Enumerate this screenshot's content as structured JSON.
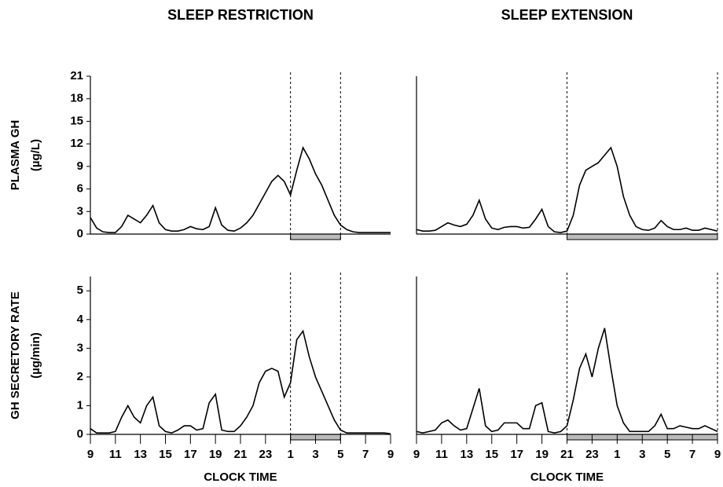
{
  "chart_data": [
    {
      "type": "line",
      "title": "SLEEP RESTRICTION",
      "ylabel": "PLASMA GH",
      "ylabel_unit": "(µg/L)",
      "color": "#000000",
      "sleep_period": [
        25,
        29
      ],
      "xlim": [
        9,
        33
      ],
      "ylim": [
        0,
        21
      ],
      "yticks": [
        0,
        3,
        6,
        9,
        12,
        15,
        18,
        21
      ],
      "x": [
        9,
        9.5,
        10,
        10.5,
        11,
        11.5,
        12,
        12.5,
        13,
        13.5,
        14,
        14.5,
        15,
        15.5,
        16,
        16.5,
        17,
        17.5,
        18,
        18.5,
        19,
        19.5,
        20,
        20.5,
        21,
        21.5,
        22,
        22.5,
        23,
        23.5,
        24,
        24.5,
        25,
        25.5,
        26,
        26.5,
        27,
        27.5,
        28,
        28.5,
        29,
        29.5,
        30,
        30.5,
        31,
        31.5,
        32,
        32.5,
        33
      ],
      "values": [
        2.2,
        0.8,
        0.3,
        0.2,
        0.2,
        1.0,
        2.5,
        2.0,
        1.5,
        2.5,
        3.8,
        1.5,
        0.6,
        0.4,
        0.4,
        0.6,
        1.0,
        0.7,
        0.6,
        1.0,
        3.5,
        1.2,
        0.5,
        0.4,
        0.8,
        1.5,
        2.5,
        4.0,
        5.5,
        7.0,
        7.8,
        7.0,
        5.2,
        8.5,
        11.5,
        10.0,
        8.0,
        6.5,
        4.5,
        2.5,
        1.2,
        0.6,
        0.3,
        0.2,
        0.2,
        0.2,
        0.2,
        0.2,
        0.2
      ]
    },
    {
      "type": "line",
      "title": "SLEEP EXTENSION",
      "color": "#000000",
      "sleep_period": [
        21,
        33
      ],
      "xlim": [
        9,
        33
      ],
      "ylim": [
        0,
        21
      ],
      "x": [
        9,
        9.5,
        10,
        10.5,
        11,
        11.5,
        12,
        12.5,
        13,
        13.5,
        14,
        14.5,
        15,
        15.5,
        16,
        16.5,
        17,
        17.5,
        18,
        18.5,
        19,
        19.5,
        20,
        20.5,
        21,
        21.5,
        22,
        22.5,
        23,
        23.5,
        24,
        24.5,
        25,
        25.5,
        26,
        26.5,
        27,
        27.5,
        28,
        28.5,
        29,
        29.5,
        30,
        30.5,
        31,
        31.5,
        32,
        32.5,
        33
      ],
      "values": [
        0.6,
        0.4,
        0.4,
        0.5,
        1.0,
        1.5,
        1.2,
        1.0,
        1.3,
        2.5,
        4.5,
        2.0,
        0.8,
        0.6,
        0.9,
        1.0,
        1.0,
        0.8,
        0.9,
        2.0,
        3.3,
        1.0,
        0.3,
        0.2,
        0.4,
        2.5,
        6.5,
        8.5,
        9.0,
        9.5,
        10.5,
        11.5,
        9.0,
        5.0,
        2.5,
        1.0,
        0.6,
        0.5,
        0.8,
        1.8,
        1.0,
        0.6,
        0.6,
        0.8,
        0.5,
        0.5,
        0.8,
        0.6,
        0.4
      ]
    },
    {
      "type": "line",
      "ylabel": "GH SECRETORY RATE",
      "ylabel_unit": "(µg/min)",
      "xlabel": "CLOCK TIME",
      "color": "#000000",
      "sleep_period": [
        25,
        29
      ],
      "xlim": [
        9,
        33
      ],
      "ylim": [
        0,
        5.5
      ],
      "yticks": [
        0,
        1,
        2,
        3,
        4,
        5
      ],
      "xticks": [
        9,
        11,
        13,
        15,
        17,
        19,
        21,
        23,
        {
          "value": 25,
          "label": "1"
        },
        {
          "value": 27,
          "label": "3"
        },
        {
          "value": 29,
          "label": "5"
        },
        {
          "value": 31,
          "label": "7"
        },
        {
          "value": 33,
          "label": "9"
        }
      ],
      "x": [
        9,
        9.5,
        10,
        10.5,
        11,
        11.5,
        12,
        12.5,
        13,
        13.5,
        14,
        14.5,
        15,
        15.5,
        16,
        16.5,
        17,
        17.5,
        18,
        18.5,
        19,
        19.5,
        20,
        20.5,
        21,
        21.5,
        22,
        22.5,
        23,
        23.5,
        24,
        24.5,
        25,
        25.5,
        26,
        26.5,
        27,
        27.5,
        28,
        28.5,
        29,
        29.5,
        30,
        30.5,
        31,
        31.5,
        32,
        32.5,
        33
      ],
      "values": [
        0.2,
        0.05,
        0.05,
        0.05,
        0.1,
        0.6,
        1.0,
        0.6,
        0.4,
        1.0,
        1.3,
        0.3,
        0.1,
        0.05,
        0.15,
        0.3,
        0.3,
        0.15,
        0.2,
        1.1,
        1.4,
        0.15,
        0.1,
        0.1,
        0.3,
        0.6,
        1.0,
        1.8,
        2.2,
        2.3,
        2.2,
        1.3,
        1.8,
        3.3,
        3.6,
        2.7,
        2.0,
        1.5,
        1.0,
        0.5,
        0.15,
        0.05,
        0.05,
        0.05,
        0.05,
        0.05,
        0.05,
        0.05,
        0.02
      ]
    },
    {
      "type": "line",
      "xlabel": "CLOCK TIME",
      "color": "#000000",
      "sleep_period": [
        21,
        33
      ],
      "xlim": [
        9,
        33
      ],
      "ylim": [
        0,
        5.5
      ],
      "xticks": [
        9,
        11,
        13,
        15,
        17,
        19,
        21,
        23,
        {
          "value": 25,
          "label": "1"
        },
        {
          "value": 27,
          "label": "3"
        },
        {
          "value": 29,
          "label": "5"
        },
        {
          "value": 31,
          "label": "7"
        },
        {
          "value": 33,
          "label": "9"
        }
      ],
      "x": [
        9,
        9.5,
        10,
        10.5,
        11,
        11.5,
        12,
        12.5,
        13,
        13.5,
        14,
        14.5,
        15,
        15.5,
        16,
        16.5,
        17,
        17.5,
        18,
        18.5,
        19,
        19.5,
        20,
        20.5,
        21,
        21.5,
        22,
        22.5,
        23,
        23.5,
        24,
        24.5,
        25,
        25.5,
        26,
        26.5,
        27,
        27.5,
        28,
        28.5,
        29,
        29.5,
        30,
        30.5,
        31,
        31.5,
        32,
        32.5,
        33
      ],
      "values": [
        0.1,
        0.05,
        0.1,
        0.15,
        0.4,
        0.5,
        0.3,
        0.15,
        0.2,
        0.9,
        1.6,
        0.3,
        0.1,
        0.15,
        0.4,
        0.4,
        0.4,
        0.2,
        0.2,
        1.0,
        1.1,
        0.1,
        0.05,
        0.1,
        0.3,
        1.2,
        2.3,
        2.8,
        2.0,
        3.0,
        3.7,
        2.3,
        1.0,
        0.4,
        0.1,
        0.1,
        0.1,
        0.1,
        0.3,
        0.7,
        0.2,
        0.2,
        0.3,
        0.25,
        0.2,
        0.2,
        0.3,
        0.2,
        0.1
      ]
    }
  ]
}
